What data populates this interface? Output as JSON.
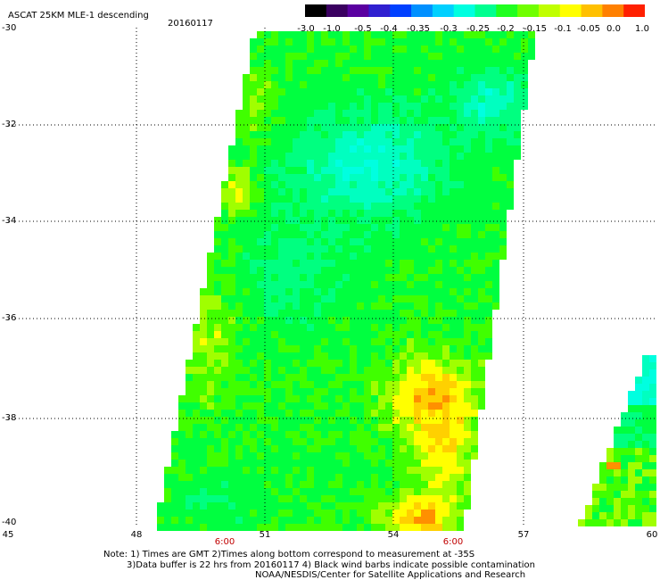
{
  "header": {
    "title": "ASCAT 25KM MLE-1 descending",
    "date": "20160117"
  },
  "colorbar": {
    "labels": [
      "-3.0",
      "-1.0",
      "-0.5",
      "-0.4",
      "-0.35",
      "-0.3",
      "-0.25",
      "-0.2",
      "-0.15",
      "-0.1",
      "-0.05",
      "0.0",
      "1.0"
    ],
    "colors": [
      "#000000",
      "#3a0060",
      "#5a00a0",
      "#3020d0",
      "#0040ff",
      "#0090ff",
      "#00d0ff",
      "#00ffe0",
      "#00ff90",
      "#20ff20",
      "#70ff00",
      "#c0ff00",
      "#ffff00",
      "#ffc000",
      "#ff8000",
      "#ff2000"
    ]
  },
  "axes": {
    "y_labels": [
      "-30",
      "-32",
      "-34",
      "-36",
      "-38",
      "-40"
    ],
    "x_labels": [
      "45",
      "48",
      "51",
      "54",
      "57",
      "60"
    ],
    "time_labels": [
      "6:00",
      "6:00"
    ]
  },
  "notes": {
    "line1": "Note: 1) Times are GMT 2)Times along bottom correspond to measurement at -35S",
    "line2": "3)Data buffer is 22 hrs from 20160117 4) Black wind barbs indicate possible contamination",
    "line3": "NOAA/NESDIS/Center for Satellite Applications and Research"
  },
  "palette": {
    "cyan": "#00ffe0",
    "aqua": "#00ffc0",
    "spring": "#00ff80",
    "green": "#00ff40",
    "lime": "#40ff00",
    "yellowgreen": "#a0ff00",
    "yellow": "#ffff00",
    "gold": "#ffd000",
    "orange": "#ff9000"
  }
}
